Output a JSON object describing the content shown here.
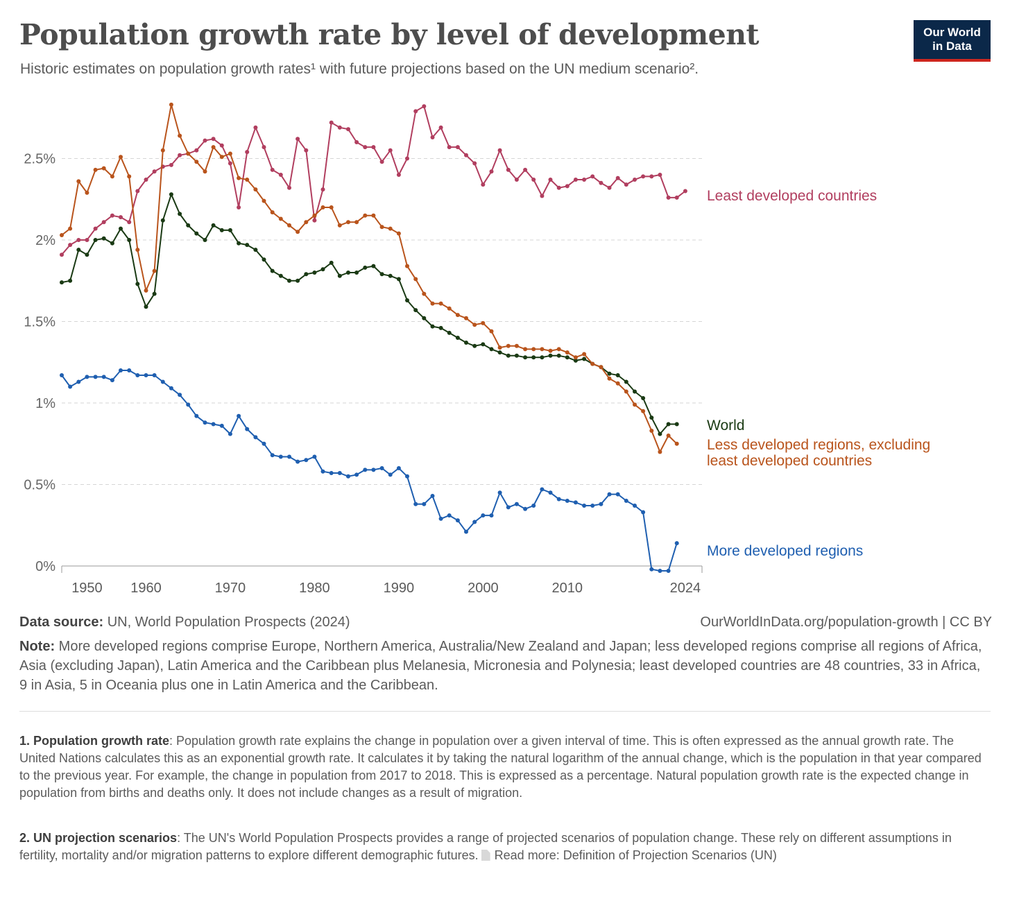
{
  "header": {
    "title": "Population growth rate by level of development",
    "subtitle": "Historic estimates on population growth rates¹ with future projections based on the UN medium scenario².",
    "logo_line1": "Our World",
    "logo_line2": "in Data"
  },
  "footer": {
    "source_label": "Data source:",
    "source_text": "UN, World Population Prospects (2024)",
    "url": "OurWorldInData.org/population-growth | CC BY",
    "note_label": "Note:",
    "note_text": "More developed regions comprise Europe, Northern America, Australia/New Zealand and Japan; less developed regions comprise all regions of Africa, Asia (excluding Japan), Latin America and the Caribbean plus Melanesia, Micronesia and Polynesia; least developed countries are 48 countries, 33 in Africa, 9 in Asia, 5 in Oceania plus one in Latin America and the Caribbean.",
    "fn1_label": "1. Population growth rate",
    "fn1_text": ": Population growth rate explains the change in population over a given interval of time. This is often expressed as the annual growth rate. The United Nations calculates this as an exponential growth rate. It calculates it by taking the natural logarithm of the annual change, which is the population in that year compared to the previous year. For example, the change in population from 2017 to 2018. This is expressed as a percentage. Natural population growth rate is the expected change in population from births and deaths only. It does not include changes as a result of migration.",
    "fn2_label": "2. UN projection scenarios",
    "fn2_text": ": The UN's World Population Prospects provides a range of projected scenarios of population change. These rely on different assumptions in fertility, mortality and/or migration patterns to explore different demographic futures.",
    "fn2_link": "Read more: Definition of Projection Scenarios (UN)"
  },
  "chart_data": {
    "type": "line",
    "x_start": 1950,
    "x_end": 2025,
    "xlim": [
      1950,
      2025
    ],
    "ylim": [
      0,
      2.85
    ],
    "y_ticks": [
      {
        "value": 0,
        "label": "0%"
      },
      {
        "value": 0.5,
        "label": "0.5%"
      },
      {
        "value": 1,
        "label": "1%"
      },
      {
        "value": 1.5,
        "label": "1.5%"
      },
      {
        "value": 2,
        "label": "2%"
      },
      {
        "value": 2.5,
        "label": "2.5%"
      }
    ],
    "x_ticks": [
      {
        "value": 1953,
        "label": "1950"
      },
      {
        "value": 1960,
        "label": "1960"
      },
      {
        "value": 1970,
        "label": "1970"
      },
      {
        "value": 1980,
        "label": "1980"
      },
      {
        "value": 1990,
        "label": "1990"
      },
      {
        "value": 2000,
        "label": "2000"
      },
      {
        "value": 2010,
        "label": "2010"
      },
      {
        "value": 2024,
        "label": "2024"
      }
    ],
    "grid": "horizontal dashed",
    "series": [
      {
        "name": "Least developed countries",
        "color": "#b13e5f",
        "label_lines": [
          "Least developed countries"
        ],
        "values": [
          1.91,
          1.97,
          2.0,
          2.0,
          2.07,
          2.11,
          2.15,
          2.14,
          2.11,
          2.3,
          2.37,
          2.42,
          2.45,
          2.46,
          2.52,
          2.53,
          2.55,
          2.61,
          2.62,
          2.58,
          2.47,
          2.2,
          2.54,
          2.69,
          2.57,
          2.43,
          2.4,
          2.32,
          2.62,
          2.55,
          2.12,
          2.31,
          2.72,
          2.69,
          2.68,
          2.6,
          2.57,
          2.57,
          2.48,
          2.55,
          2.4,
          2.5,
          2.79,
          2.82,
          2.63,
          2.69,
          2.57,
          2.57,
          2.52,
          2.47,
          2.34,
          2.42,
          2.55,
          2.43,
          2.37,
          2.43,
          2.37,
          2.27,
          2.37,
          2.32,
          2.33,
          2.37,
          2.37,
          2.39,
          2.35,
          2.32,
          2.38,
          2.34,
          2.37,
          2.39,
          2.39,
          2.4,
          2.26,
          2.26,
          2.3
        ]
      },
      {
        "name": "World",
        "color": "#1a3a14",
        "label_lines": [
          "World"
        ],
        "values": [
          1.74,
          1.75,
          1.94,
          1.91,
          2.0,
          2.01,
          1.98,
          2.07,
          2.0,
          1.73,
          1.59,
          1.67,
          2.12,
          2.28,
          2.16,
          2.09,
          2.04,
          2.0,
          2.09,
          2.06,
          2.06,
          1.98,
          1.97,
          1.94,
          1.88,
          1.81,
          1.78,
          1.75,
          1.75,
          1.79,
          1.8,
          1.82,
          1.86,
          1.78,
          1.8,
          1.8,
          1.83,
          1.84,
          1.79,
          1.78,
          1.76,
          1.63,
          1.57,
          1.52,
          1.47,
          1.46,
          1.43,
          1.4,
          1.37,
          1.35,
          1.36,
          1.33,
          1.31,
          1.29,
          1.29,
          1.28,
          1.28,
          1.28,
          1.29,
          1.29,
          1.28,
          1.26,
          1.27,
          1.24,
          1.22,
          1.18,
          1.17,
          1.13,
          1.07,
          1.03,
          0.91,
          0.81,
          0.87,
          0.87
        ]
      },
      {
        "name": "Less developed regions, excluding least developed countries",
        "color": "#b9541c",
        "label_lines": [
          "Less developed regions, excluding",
          "least developed countries"
        ],
        "values": [
          2.03,
          2.07,
          2.36,
          2.29,
          2.43,
          2.44,
          2.39,
          2.51,
          2.39,
          1.94,
          1.69,
          1.81,
          2.55,
          2.83,
          2.64,
          2.53,
          2.48,
          2.42,
          2.57,
          2.51,
          2.53,
          2.38,
          2.37,
          2.31,
          2.24,
          2.17,
          2.13,
          2.09,
          2.05,
          2.11,
          2.15,
          2.2,
          2.2,
          2.09,
          2.11,
          2.11,
          2.15,
          2.15,
          2.08,
          2.07,
          2.04,
          1.84,
          1.76,
          1.67,
          1.61,
          1.61,
          1.58,
          1.54,
          1.52,
          1.48,
          1.49,
          1.44,
          1.34,
          1.35,
          1.35,
          1.33,
          1.33,
          1.33,
          1.32,
          1.33,
          1.31,
          1.28,
          1.3,
          1.24,
          1.22,
          1.15,
          1.12,
          1.07,
          0.99,
          0.95,
          0.83,
          0.7,
          0.8,
          0.75
        ]
      },
      {
        "name": "More developed regions",
        "color": "#1f5fb0",
        "label_lines": [
          "More developed regions"
        ],
        "values": [
          1.17,
          1.1,
          1.13,
          1.16,
          1.16,
          1.16,
          1.14,
          1.2,
          1.2,
          1.17,
          1.17,
          1.17,
          1.13,
          1.09,
          1.05,
          0.99,
          0.92,
          0.88,
          0.87,
          0.86,
          0.81,
          0.92,
          0.84,
          0.79,
          0.75,
          0.68,
          0.67,
          0.67,
          0.64,
          0.65,
          0.67,
          0.58,
          0.57,
          0.57,
          0.55,
          0.56,
          0.59,
          0.59,
          0.6,
          0.56,
          0.6,
          0.55,
          0.38,
          0.38,
          0.43,
          0.29,
          0.31,
          0.28,
          0.21,
          0.27,
          0.31,
          0.31,
          0.45,
          0.36,
          0.38,
          0.35,
          0.37,
          0.47,
          0.45,
          0.41,
          0.4,
          0.39,
          0.37,
          0.37,
          0.38,
          0.44,
          0.44,
          0.4,
          0.37,
          0.33,
          -0.02,
          -0.03,
          -0.03,
          0.14
        ]
      }
    ]
  }
}
